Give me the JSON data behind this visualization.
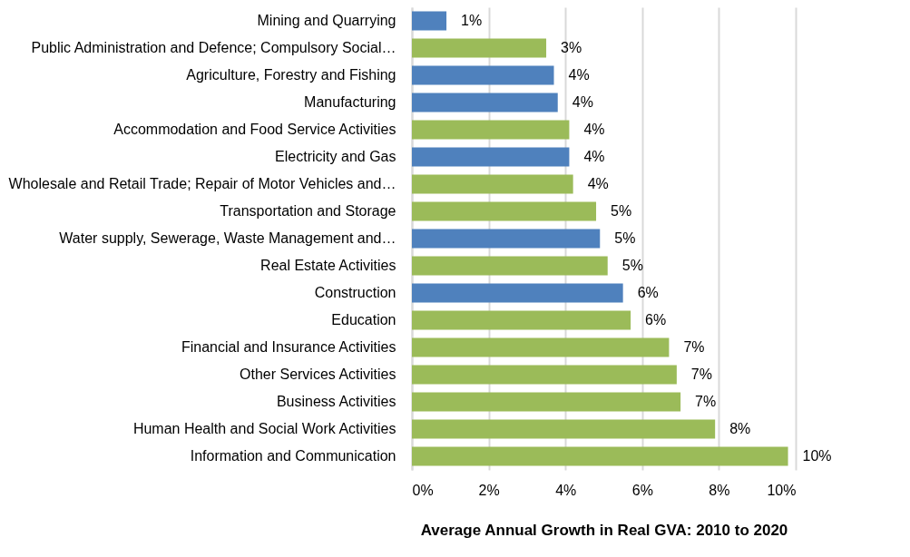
{
  "chart_data": {
    "type": "bar",
    "orientation": "horizontal",
    "xlabel": "Average Annual Growth in Real GVA: 2010 to 2020",
    "categories": [
      "Mining and Quarrying",
      "Public Administration and Defence; Compulsory Social…",
      "Agriculture, Forestry and Fishing",
      "Manufacturing",
      "Accommodation and Food Service Activities",
      "Electricity and Gas",
      "Wholesale and Retail Trade; Repair of Motor Vehicles and…",
      "Transportation and Storage",
      "Water supply, Sewerage, Waste Management and…",
      "Real Estate Activities",
      "Construction",
      "Education",
      "Financial and Insurance Activities",
      "Other Services Activities",
      "Business Activities",
      "Human Health and Social Work Activities",
      "Information and Communication"
    ],
    "values": [
      0.9,
      3.5,
      3.7,
      3.8,
      4.1,
      4.1,
      4.2,
      4.8,
      4.9,
      5.1,
      5.5,
      5.7,
      6.7,
      6.9,
      7.0,
      7.9,
      9.8
    ],
    "value_labels": [
      "1%",
      "3%",
      "4%",
      "4%",
      "4%",
      "4%",
      "4%",
      "5%",
      "5%",
      "5%",
      "6%",
      "6%",
      "7%",
      "7%",
      "7%",
      "8%",
      "10%"
    ],
    "colors": [
      "#4f81bd",
      "#9bbb59",
      "#4f81bd",
      "#4f81bd",
      "#9bbb59",
      "#4f81bd",
      "#9bbb59",
      "#9bbb59",
      "#4f81bd",
      "#9bbb59",
      "#4f81bd",
      "#9bbb59",
      "#9bbb59",
      "#9bbb59",
      "#9bbb59",
      "#9bbb59",
      "#9bbb59"
    ],
    "xlim": [
      0,
      10
    ],
    "xticks": [
      {
        "value": 0,
        "label": "0%"
      },
      {
        "value": 2,
        "label": "2%"
      },
      {
        "value": 4,
        "label": "4%"
      },
      {
        "value": 6,
        "label": "6%"
      },
      {
        "value": 8,
        "label": "8%"
      },
      {
        "value": 10,
        "label": "10%"
      }
    ],
    "grid": "x"
  }
}
